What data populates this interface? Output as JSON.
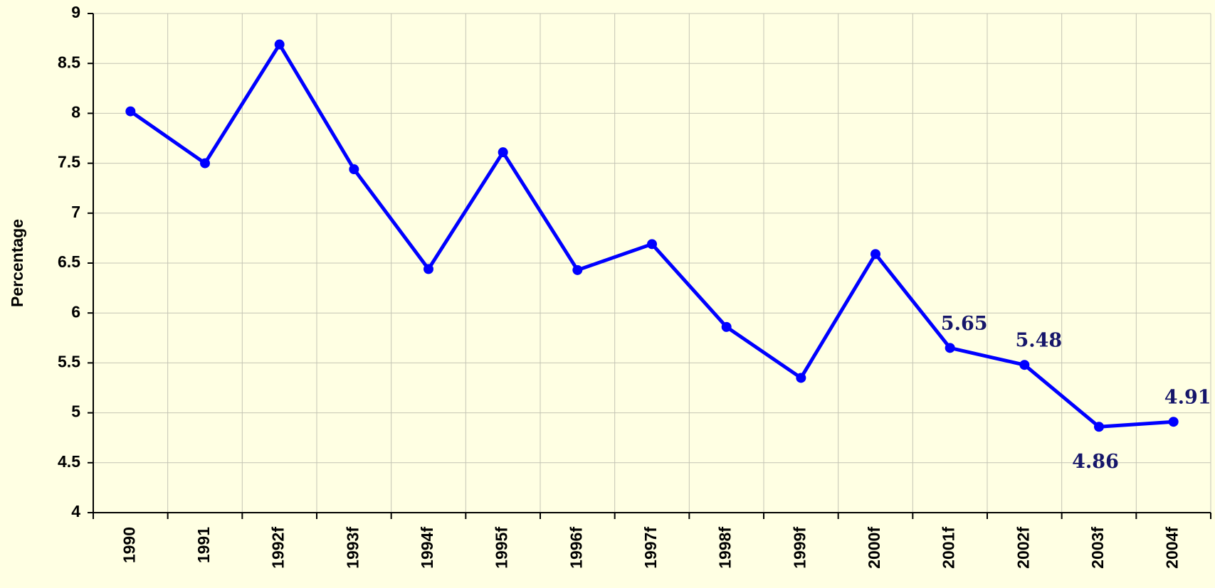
{
  "chart_data": {
    "type": "line",
    "y_label": "Percentage",
    "categories": [
      "1990",
      "1991",
      "1992f",
      "1993f",
      "1994f",
      "1995f",
      "1996f",
      "1997f",
      "1998f",
      "1999f",
      "2000f",
      "2001f",
      "2002f",
      "2003f",
      "2004f"
    ],
    "values": [
      8.02,
      7.5,
      8.69,
      7.44,
      6.44,
      7.61,
      6.43,
      6.69,
      5.86,
      5.35,
      6.59,
      5.65,
      5.48,
      4.86,
      4.91
    ],
    "value_labels": [
      null,
      null,
      null,
      null,
      null,
      null,
      null,
      null,
      null,
      null,
      null,
      "5.65",
      "5.48",
      "4.86",
      "4.91"
    ],
    "color": "#0000ff",
    "ylim": [
      4,
      9
    ],
    "yticks": [
      4,
      4.5,
      5,
      5.5,
      6,
      6.5,
      7,
      7.5,
      8,
      8.5,
      9
    ],
    "grid": true
  }
}
